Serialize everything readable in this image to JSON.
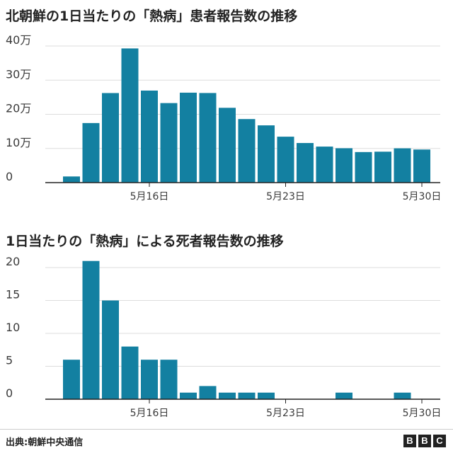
{
  "source": "出典:朝鮮中央通信",
  "brand": {
    "letters": [
      "B",
      "B",
      "C"
    ]
  },
  "colors": {
    "bar": "#1380a1",
    "grid": "#dddddd",
    "axis": "#222222"
  },
  "chart_data": [
    {
      "type": "bar",
      "title": "北朝鮮の1日当たりの「熱病」患者報告数の推移",
      "categories": [
        "5月12日",
        "5月13日",
        "5月14日",
        "5月15日",
        "5月16日",
        "5月17日",
        "5月18日",
        "5月19日",
        "5月20日",
        "5月21日",
        "5月22日",
        "5月23日",
        "5月24日",
        "5月25日",
        "5月26日",
        "5月27日",
        "5月28日",
        "5月29日",
        "5月30日",
        "5月31日"
      ],
      "values": [
        18000,
        174440,
        262270,
        392920,
        269510,
        232880,
        263370,
        262400,
        219030,
        186090,
        167650,
        134510,
        115970,
        105500,
        100710,
        89500,
        90580,
        100460,
        96870,
        0
      ],
      "ylim": [
        0,
        400000
      ],
      "yticks": [
        0,
        100000,
        200000,
        300000,
        400000
      ],
      "ytick_labels": [
        "0",
        "10万",
        "20万",
        "30万",
        "40万"
      ],
      "xtick_labels": [
        "5月16日",
        "5月23日",
        "5月30日"
      ],
      "xtick_index": [
        4,
        11,
        18
      ],
      "grid": true,
      "legend": "none"
    },
    {
      "type": "bar",
      "title": "1日当たりの「熱病」による死者報告数の推移",
      "categories": [
        "5月12日",
        "5月13日",
        "5月14日",
        "5月15日",
        "5月16日",
        "5月17日",
        "5月18日",
        "5月19日",
        "5月20日",
        "5月21日",
        "5月22日",
        "5月23日",
        "5月24日",
        "5月25日",
        "5月26日",
        "5月27日",
        "5月28日",
        "5月29日",
        "5月30日",
        "5月31日"
      ],
      "values": [
        6,
        21,
        15,
        8,
        6,
        6,
        1,
        2,
        1,
        1,
        1,
        0,
        0,
        0,
        1,
        0,
        0,
        1,
        0,
        0
      ],
      "ylim": [
        0,
        20
      ],
      "yticks": [
        0,
        5,
        10,
        15,
        20
      ],
      "ytick_labels": [
        "0",
        "5",
        "10",
        "15",
        "20"
      ],
      "xtick_labels": [
        "5月16日",
        "5月23日",
        "5月30日"
      ],
      "xtick_index": [
        4,
        11,
        18
      ],
      "grid": true,
      "legend": "none"
    }
  ]
}
